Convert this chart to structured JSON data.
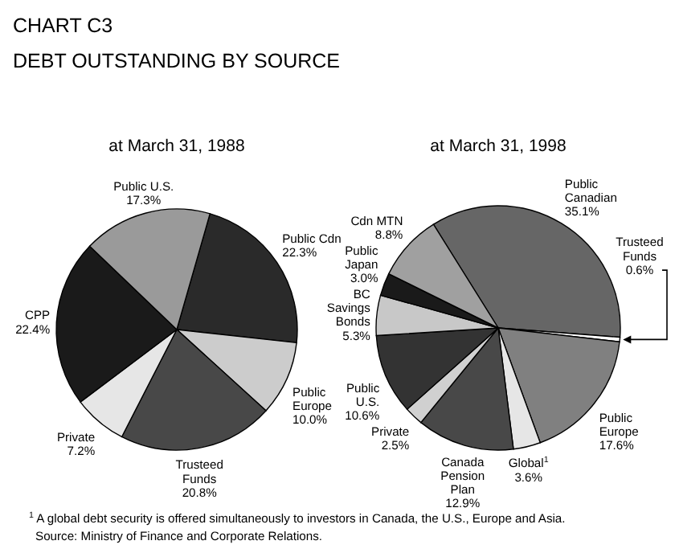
{
  "chart_data": [
    {
      "type": "other",
      "title": "CHART C3",
      "subtitle": "DEBT OUTSTANDING BY SOURCE",
      "annotations": [
        "$^{1}$ A global debt security is offered simultaneously to investors in Canada, the U.S., Europe and Asia.",
        "Source: Ministry of Finance and Corporate Relations."
      ]
    },
    {
      "type": "pie",
      "title": "at March 31, 1988",
      "categories": [
        "Public Cdn",
        "Public Europe",
        "Trusteed Funds",
        "Private",
        "CPP",
        "Public U.S."
      ],
      "values": [
        22.3,
        10.0,
        20.8,
        7.2,
        22.4,
        17.3
      ],
      "value_labels": [
        "22.3%",
        "10.0%",
        "20.8%",
        "7.2%",
        "22.4%",
        "17.3%"
      ],
      "colors": [
        "#2a2a2a",
        "#cccccc",
        "#484848",
        "#e6e6e6",
        "#1a1a1a",
        "#9a9a9a"
      ]
    },
    {
      "type": "pie",
      "title": "at March 31, 1998",
      "categories": [
        "Public Canadian",
        "Trusteed Funds",
        "Public Europe",
        "Global$^{1}$",
        "Canada Pension Plan",
        "Private",
        "Public U.S.",
        "BC Savings Bonds",
        "Public Japan",
        "Cdn MTN"
      ],
      "values": [
        35.1,
        0.6,
        17.6,
        3.6,
        12.9,
        2.5,
        10.6,
        5.3,
        3.0,
        8.8
      ],
      "value_labels": [
        "35.1%",
        "0.6%",
        "17.6%",
        "3.6%",
        "12.9%",
        "2.5%",
        "10.6%",
        "5.3%",
        "3.0%",
        "8.8%"
      ],
      "colors": [
        "#666666",
        "#ffffff",
        "#808080",
        "#e6e6e6",
        "#484848",
        "#d0d0d0",
        "#333333",
        "#c8c8c8",
        "#1a1a1a",
        "#a0a0a0"
      ]
    }
  ]
}
